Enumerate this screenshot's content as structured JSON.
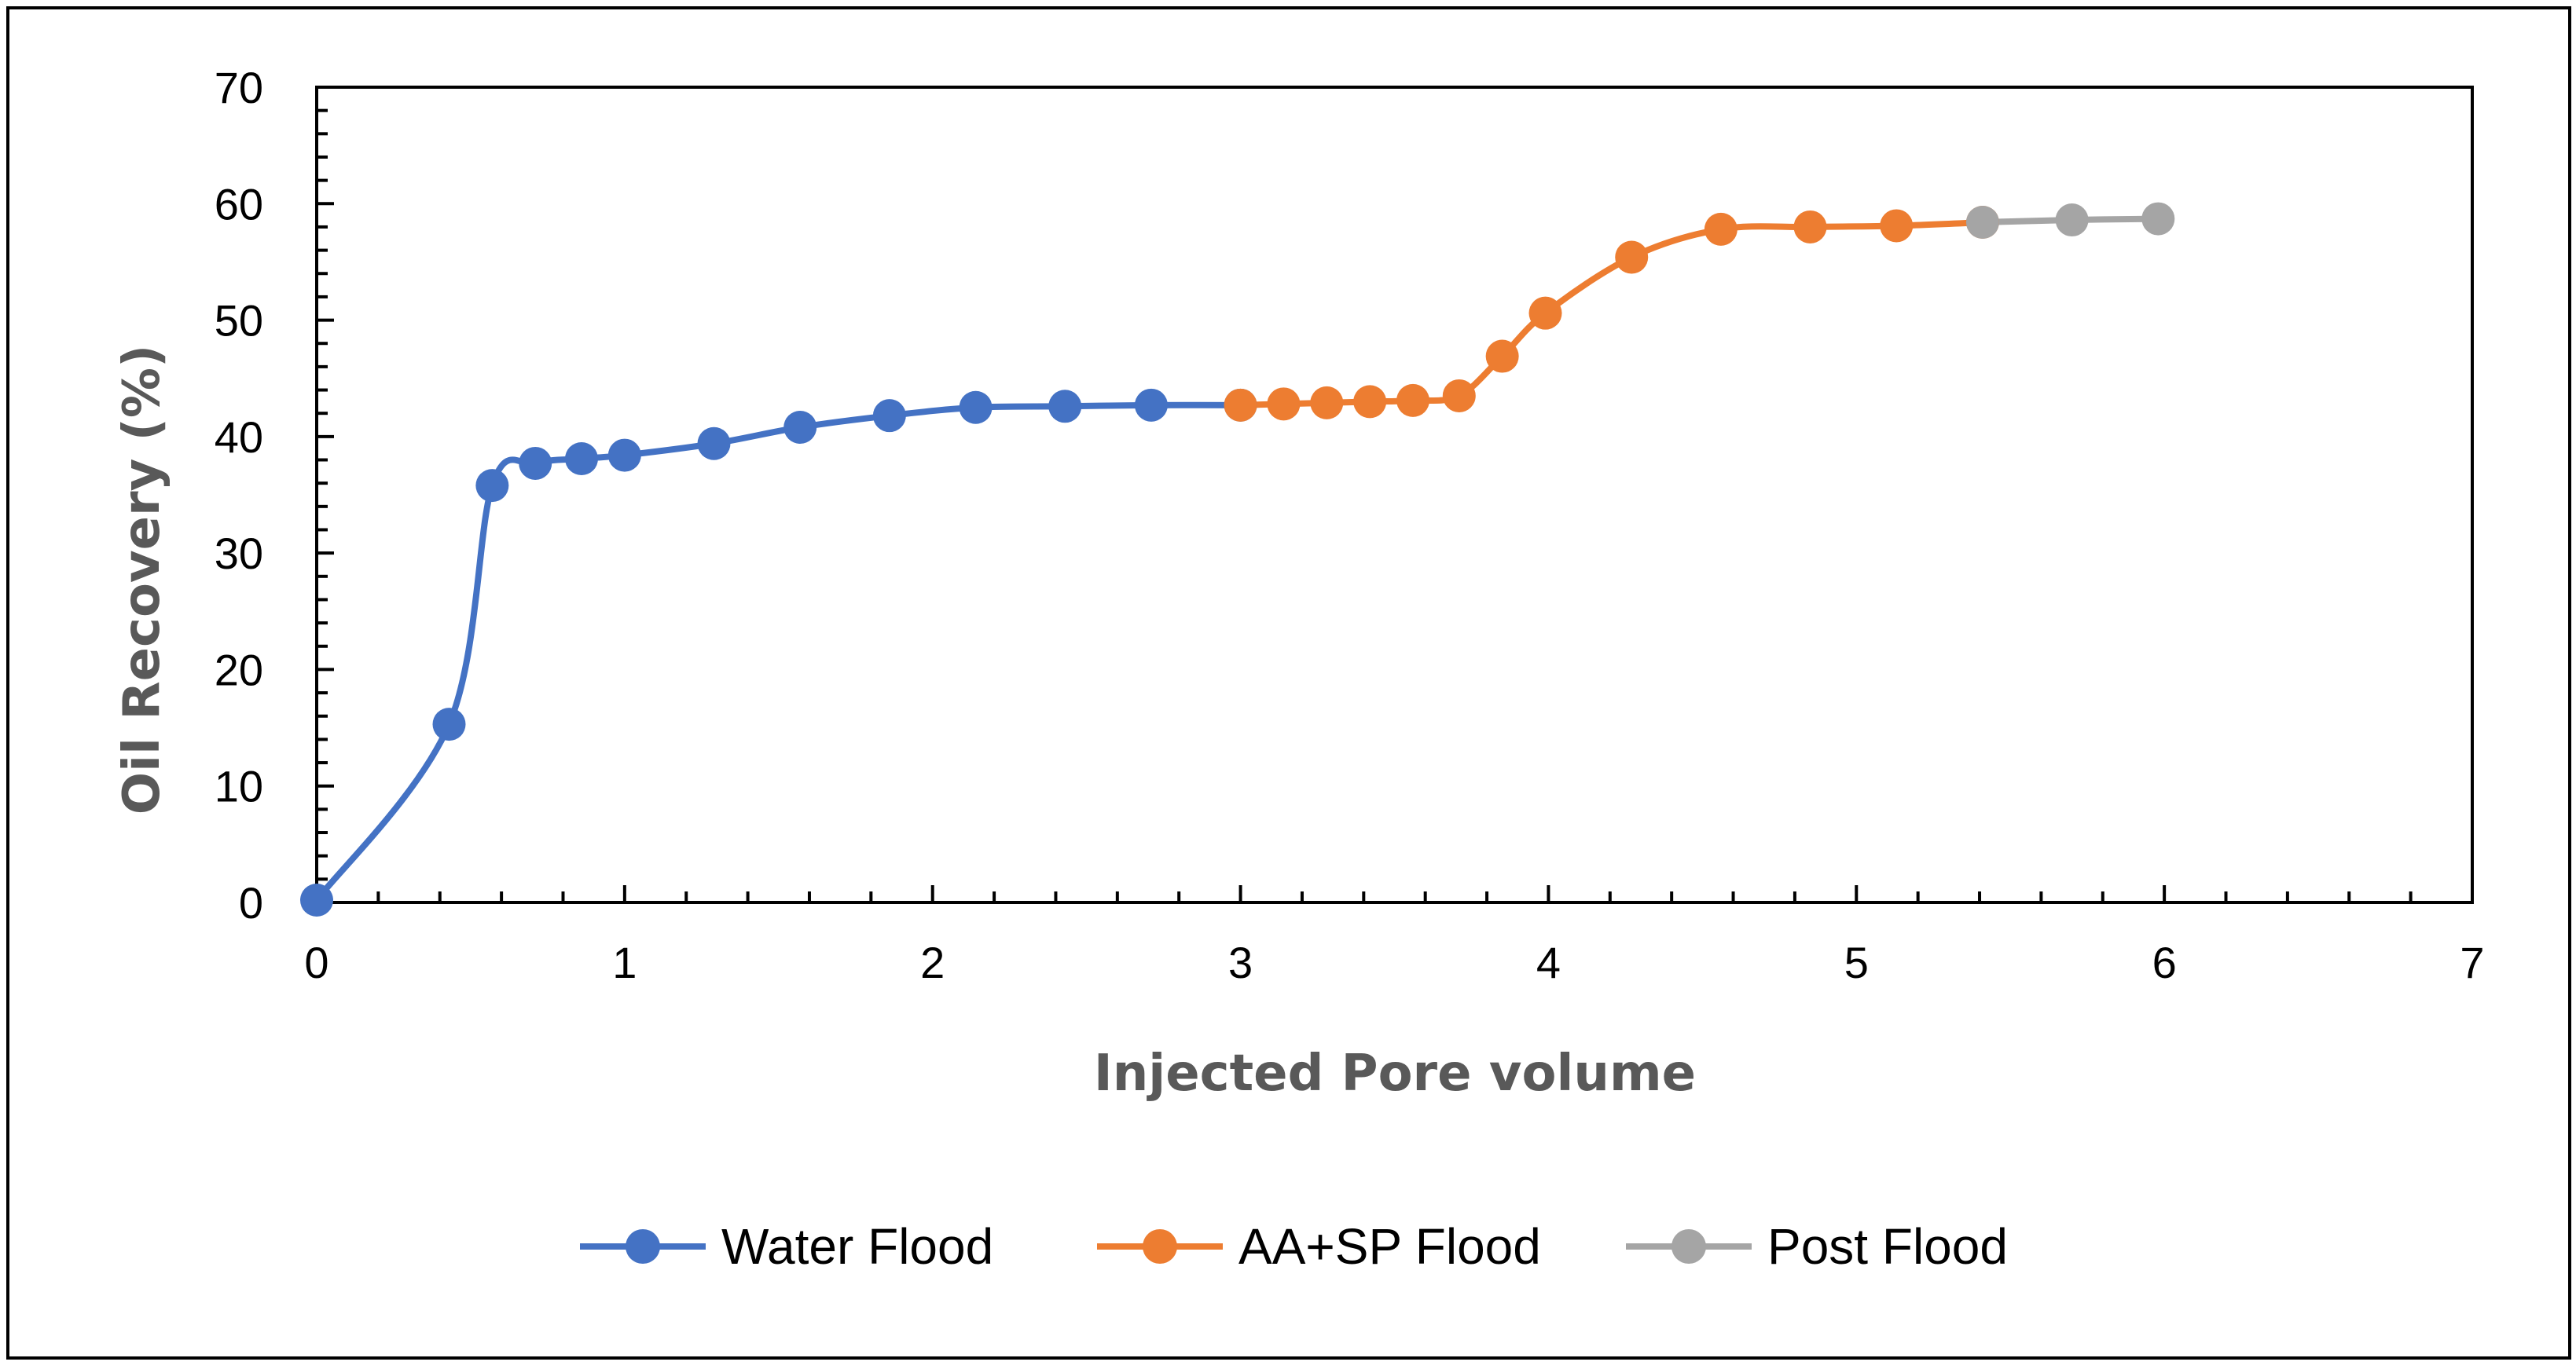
{
  "chart_data": {
    "type": "line",
    "title": "",
    "xlabel": "Injected Pore volume",
    "ylabel": "Oil Recovery (%)",
    "xlim": [
      0,
      7
    ],
    "ylim": [
      0,
      70
    ],
    "x_ticks": [
      "0",
      "1",
      "2",
      "3",
      "4",
      "5",
      "6",
      "7"
    ],
    "y_ticks": [
      "0",
      "10",
      "20",
      "30",
      "40",
      "50",
      "60",
      "70"
    ],
    "grid": false,
    "legend_position": "bottom",
    "series": [
      {
        "name": "Water Flood",
        "color": "#4472C4",
        "x": [
          0,
          0.43,
          0.57,
          0.71,
          0.86,
          1.0,
          1.29,
          1.57,
          1.86,
          2.14,
          2.43,
          2.71,
          3.0
        ],
        "y": [
          0.2,
          15.3,
          35.8,
          37.7,
          38.1,
          38.4,
          39.4,
          40.8,
          41.8,
          42.5,
          42.6,
          42.7,
          42.7
        ]
      },
      {
        "name": "AA+SP Flood",
        "color": "#ED7D31",
        "x": [
          3.0,
          3.14,
          3.28,
          3.42,
          3.56,
          3.71,
          3.85,
          3.99,
          4.27,
          4.56,
          4.85,
          5.13,
          5.41
        ],
        "y": [
          42.7,
          42.8,
          42.9,
          43.0,
          43.1,
          43.5,
          46.9,
          50.6,
          55.4,
          57.8,
          58.0,
          58.1,
          58.4
        ]
      },
      {
        "name": "Post Flood",
        "color": "#A5A5A5",
        "x": [
          5.41,
          5.7,
          5.98
        ],
        "y": [
          58.4,
          58.6,
          58.7
        ]
      }
    ]
  }
}
